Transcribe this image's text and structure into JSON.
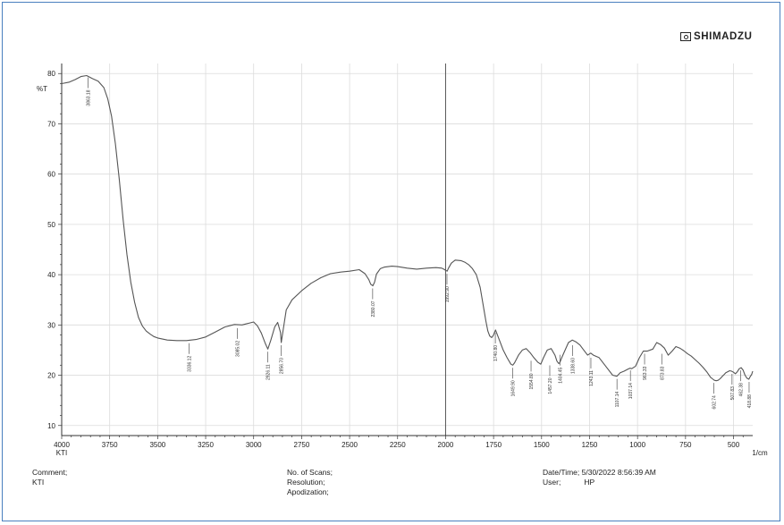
{
  "header": {
    "brand": "SHIMADZU"
  },
  "chart_data": {
    "type": "line",
    "title": "",
    "ylabel": "%T",
    "xlabel": "1/cm",
    "x_sample_label": "KTI",
    "xlim": [
      4000,
      400
    ],
    "ylim": [
      8,
      82
    ],
    "x_ticks": [
      4000,
      3750,
      3500,
      3250,
      3000,
      2750,
      2500,
      2250,
      2000,
      1750,
      1500,
      1250,
      1000,
      750,
      500
    ],
    "y_ticks": [
      10,
      20,
      30,
      40,
      50,
      60,
      70,
      80
    ],
    "grid": true,
    "marker_line_x": 2000,
    "series": [
      {
        "name": "",
        "color": "#555555",
        "x": [
          4000,
          3960,
          3930,
          3900,
          3870,
          3840,
          3810,
          3780,
          3760,
          3740,
          3720,
          3700,
          3680,
          3660,
          3640,
          3620,
          3600,
          3580,
          3560,
          3540,
          3520,
          3500,
          3450,
          3400,
          3350,
          3300,
          3250,
          3200,
          3150,
          3100,
          3060,
          3040,
          3020,
          3000,
          2980,
          2960,
          2940,
          2926,
          2910,
          2890,
          2875,
          2860,
          2856,
          2845,
          2830,
          2800,
          2750,
          2700,
          2650,
          2600,
          2550,
          2500,
          2450,
          2420,
          2400,
          2390,
          2379,
          2370,
          2360,
          2340,
          2320,
          2280,
          2250,
          2200,
          2150,
          2100,
          2050,
          2020,
          2005,
          1992,
          1985,
          1970,
          1950,
          1920,
          1900,
          1880,
          1860,
          1840,
          1820,
          1800,
          1790,
          1780,
          1770,
          1760,
          1750,
          1740,
          1720,
          1700,
          1680,
          1660,
          1650,
          1640,
          1620,
          1600,
          1580,
          1560,
          1540,
          1520,
          1504,
          1490,
          1470,
          1450,
          1430,
          1420,
          1410,
          1404,
          1395,
          1380,
          1360,
          1340,
          1320,
          1300,
          1280,
          1260,
          1244,
          1230,
          1200,
          1160,
          1130,
          1108,
          1090,
          1070,
          1050,
          1040,
          1030,
          1010,
          990,
          970,
          950,
          920,
          900,
          880,
          860,
          840,
          820,
          800,
          780,
          760,
          740,
          720,
          700,
          680,
          660,
          640,
          620,
          610,
          600,
          590,
          580,
          570,
          560,
          550,
          540,
          530,
          520,
          510,
          500,
          490,
          480,
          470,
          460,
          450,
          440,
          430,
          420,
          415,
          405,
          400
        ],
        "y": [
          78.0,
          78.3,
          78.8,
          79.4,
          79.6,
          79.0,
          78.5,
          77.2,
          75.0,
          71.5,
          66.0,
          59.0,
          51.0,
          44.0,
          38.5,
          34.5,
          31.5,
          29.8,
          28.8,
          28.2,
          27.7,
          27.4,
          27.0,
          26.9,
          26.9,
          27.1,
          27.6,
          28.6,
          29.6,
          30.1,
          30.0,
          30.2,
          30.4,
          30.6,
          29.8,
          28.4,
          26.4,
          25.2,
          27.0,
          29.6,
          30.5,
          28.5,
          26.5,
          29.3,
          33.0,
          35.0,
          36.8,
          38.3,
          39.4,
          40.2,
          40.5,
          40.7,
          41.0,
          40.2,
          39.0,
          38.1,
          37.8,
          38.5,
          40.1,
          41.2,
          41.5,
          41.7,
          41.6,
          41.3,
          41.1,
          41.3,
          41.4,
          41.3,
          41.0,
          40.7,
          41.3,
          42.3,
          42.9,
          42.8,
          42.5,
          42.0,
          41.2,
          40.0,
          37.5,
          33.0,
          30.8,
          28.8,
          27.8,
          27.5,
          28.0,
          29.0,
          27.0,
          25.0,
          23.5,
          22.2,
          22.0,
          22.5,
          24.0,
          25.0,
          25.3,
          24.5,
          23.5,
          22.6,
          22.2,
          23.5,
          25.0,
          25.3,
          24.0,
          22.8,
          22.3,
          22.6,
          23.5,
          24.8,
          26.5,
          27.0,
          26.6,
          26.0,
          25.0,
          24.0,
          24.4,
          24.0,
          23.5,
          21.5,
          20.0,
          19.8,
          20.5,
          20.8,
          21.2,
          21.4,
          21.3,
          21.8,
          23.5,
          24.8,
          24.8,
          25.2,
          26.5,
          26.1,
          25.4,
          24.0,
          24.8,
          25.7,
          25.4,
          24.9,
          24.3,
          23.8,
          23.1,
          22.4,
          21.6,
          20.7,
          19.6,
          19.3,
          19.0,
          18.9,
          19.0,
          19.3,
          19.7,
          20.1,
          20.5,
          20.7,
          20.9,
          20.8,
          20.6,
          20.3,
          20.7,
          21.3,
          21.5,
          21.0,
          20.0,
          19.4,
          19.2,
          19.6,
          20.2,
          20.8
        ]
      }
    ],
    "peaks": [
      {
        "x": 3863.3,
        "y": 79.6,
        "label": "3863.18"
      },
      {
        "x": 3336.1,
        "y": 26.9,
        "label": "3336.12"
      },
      {
        "x": 3085.0,
        "y": 29.9,
        "label": "3085.02"
      },
      {
        "x": 2926.1,
        "y": 25.2,
        "label": "2926.11"
      },
      {
        "x": 2856.7,
        "y": 26.5,
        "label": "2856.70"
      },
      {
        "x": 2380.0,
        "y": 37.8,
        "label": "2380.07"
      },
      {
        "x": 1992.9,
        "y": 40.7,
        "label": "1992.90"
      },
      {
        "x": 1740.8,
        "y": 29.0,
        "label": "1740.80"
      },
      {
        "x": 1649.9,
        "y": 22.0,
        "label": "1649.90"
      },
      {
        "x": 1554.8,
        "y": 23.4,
        "label": "1554.80"
      },
      {
        "x": 1457.2,
        "y": 22.5,
        "label": "1457.20"
      },
      {
        "x": 1404.5,
        "y": 24.6,
        "label": "1404.45"
      },
      {
        "x": 1338.6,
        "y": 26.5,
        "label": "1338.60"
      },
      {
        "x": 1243.1,
        "y": 24.0,
        "label": "1243.11"
      },
      {
        "x": 1107.1,
        "y": 19.8,
        "label": "1107.14"
      },
      {
        "x": 1037.1,
        "y": 21.5,
        "label": "1037.14"
      },
      {
        "x": 963.3,
        "y": 24.8,
        "label": "963.33"
      },
      {
        "x": 873.8,
        "y": 24.8,
        "label": "873.83"
      },
      {
        "x": 602.7,
        "y": 19.0,
        "label": "602.74"
      },
      {
        "x": 507.8,
        "y": 20.8,
        "label": "507.83"
      },
      {
        "x": 462.3,
        "y": 21.5,
        "label": "462.38"
      },
      {
        "x": 418.8,
        "y": 19.2,
        "label": "418.88"
      }
    ]
  },
  "footer": {
    "comment_label": "Comment;",
    "comment_value": "KTI",
    "scans_label": "No. of Scans;",
    "resolution_label": "Resolution;",
    "apodization_label": "Apodization;",
    "datetime_label": "Date/Time;",
    "datetime_value": "5/30/2022 8:56:39 AM",
    "user_label": "User;",
    "user_value": "HP"
  }
}
